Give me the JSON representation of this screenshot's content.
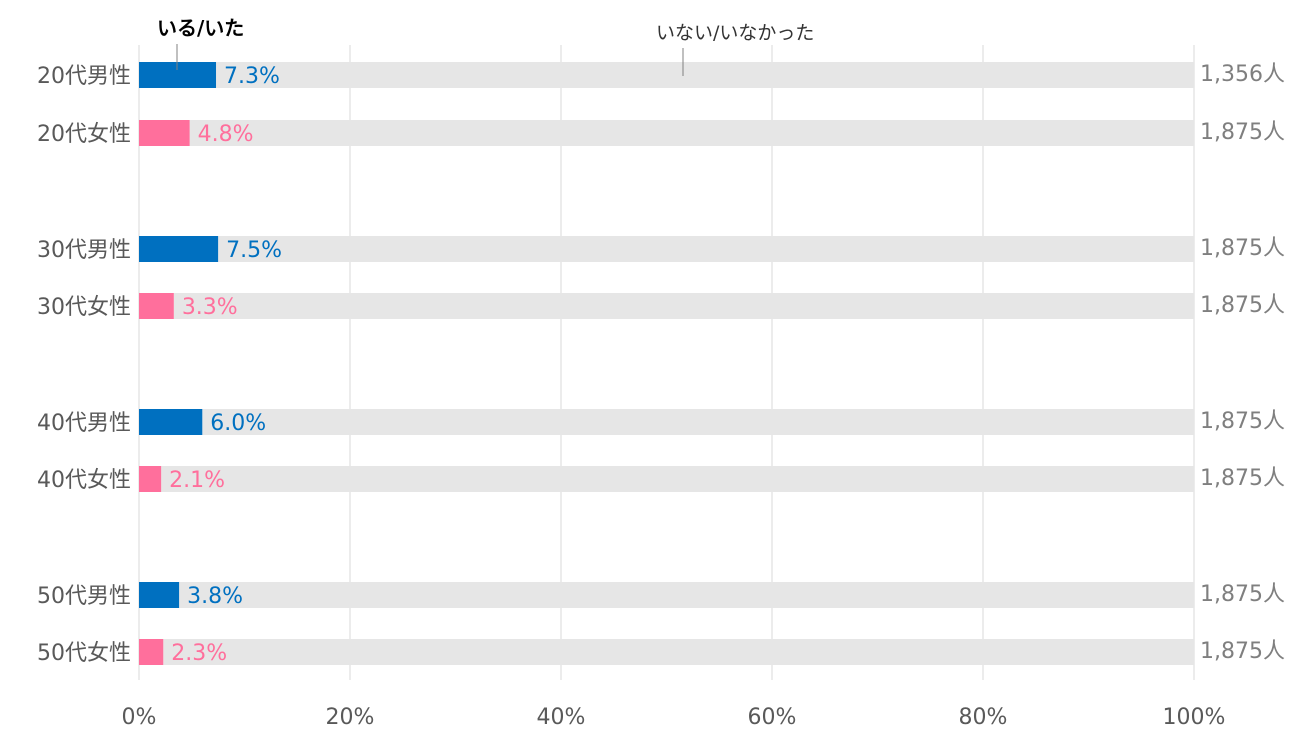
{
  "chart_data": {
    "type": "bar",
    "orientation": "horizontal",
    "stacked_to_100": true,
    "categories": [
      "20代男性",
      "20代女性",
      "30代男性",
      "30代女性",
      "40代男性",
      "40代女性",
      "50代男性",
      "50代女性"
    ],
    "series": [
      {
        "name": "いる/いた",
        "values": [
          7.3,
          4.8,
          7.5,
          3.3,
          6.0,
          2.1,
          3.8,
          2.3
        ],
        "value_labels": [
          "7.3%",
          "4.8%",
          "7.5%",
          "3.3%",
          "6.0%",
          "2.1%",
          "3.8%",
          "2.3%"
        ]
      },
      {
        "name": "いない/いなかった",
        "values": [
          92.7,
          95.2,
          92.5,
          96.7,
          94.0,
          97.9,
          96.2,
          97.7
        ]
      }
    ],
    "sample_sizes": [
      "1,356人",
      "1,875人",
      "1,875人",
      "1,875人",
      "1,875人",
      "1,875人",
      "1,875人",
      "1,875人"
    ],
    "x_ticks": [
      "0%",
      "20%",
      "40%",
      "60%",
      "80%",
      "100%"
    ],
    "x_tick_values": [
      0,
      20,
      40,
      60,
      80,
      100
    ],
    "xlim": [
      0,
      100
    ],
    "grid": true,
    "legend": "inline callouts above first bar",
    "colors": {
      "male": "#0070c0",
      "female": "#ff6f9c",
      "remainder": "#e6e6e6",
      "grid": "#d9d9d9"
    }
  }
}
